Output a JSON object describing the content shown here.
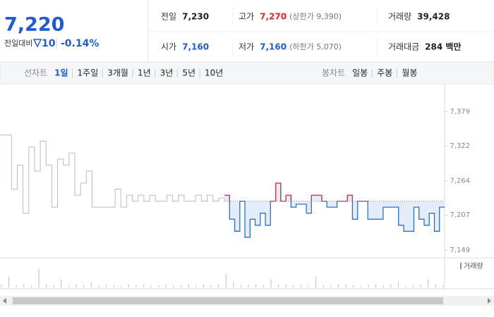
{
  "header": {
    "price": "7,220",
    "change_label": "전일대비",
    "change": "10",
    "change_pct": "-0.14%"
  },
  "quote": [
    {
      "label": "전일",
      "value": "7,230"
    },
    {
      "label": "고가",
      "value": "7,270",
      "note": "(상한가 9,390)"
    },
    {
      "label": "거래량",
      "value": "39,428"
    },
    {
      "label": "시가",
      "value": "7,160"
    },
    {
      "label": "저가",
      "value": "7,160",
      "note": "(하한가 5,070)"
    },
    {
      "label": "거래대금",
      "value": "284 백만"
    }
  ],
  "tabs": {
    "line_label": "선차트",
    "line": [
      "1일",
      "1주일",
      "3개월",
      "1년",
      "3년",
      "5년",
      "10년"
    ],
    "candle_label": "봉차트",
    "candle": [
      "일봉",
      "주봉",
      "월봉"
    ]
  },
  "chart_data": {
    "type": "line",
    "ylim": [
      7137,
      7424
    ],
    "yticks": [
      {
        "value": 7379,
        "label": "7,379"
      },
      {
        "value": 7322,
        "label": "7,322"
      },
      {
        "value": 7264,
        "label": "7,264"
      },
      {
        "value": 7207,
        "label": "7,207"
      },
      {
        "value": 7149,
        "label": "7,149"
      }
    ],
    "baseline": 7230,
    "series": [
      {
        "color": "#bbbbbb",
        "values": [
          7340,
          7340,
          7250,
          7290,
          7210,
          7320,
          7280,
          7330,
          7290,
          7220,
          7300,
          7290,
          7310,
          7240,
          7260,
          7280,
          7220,
          7220,
          7220,
          7220,
          7250,
          7220,
          7240,
          7230,
          7240,
          7230,
          7240,
          7230,
          7230,
          7240,
          7230,
          7240,
          7230,
          7230,
          7240,
          7230,
          7240,
          7230,
          7235,
          7230
        ]
      },
      {
        "color": "#2b6fd6",
        "up_color": "#e8333a",
        "values": [
          7240,
          7200,
          7180,
          7230,
          7170,
          7200,
          7190,
          7210,
          7190,
          7230,
          7260,
          7230,
          7240,
          7220,
          7225,
          7225,
          7210,
          7240,
          7240,
          7230,
          7220,
          7220,
          7230,
          7230,
          7240,
          7200,
          7230,
          7230,
          7200,
          7200,
          7200,
          7220,
          7220,
          7220,
          7190,
          7180,
          7180,
          7220,
          7200,
          7190,
          7210,
          7180,
          7220,
          7220
        ]
      }
    ],
    "volume": {
      "name": "거래량",
      "color": "#bbbbbb",
      "ylim": [
        0,
        100
      ],
      "values": [
        10,
        40,
        8,
        12,
        6,
        70,
        10,
        8,
        30,
        6,
        12,
        8,
        20,
        6,
        10,
        8,
        6,
        12,
        8,
        10,
        6,
        8,
        10,
        6,
        8,
        12,
        6,
        10,
        8,
        12,
        50,
        20,
        8,
        10,
        12,
        8,
        30,
        10,
        12,
        8,
        10,
        6,
        40,
        8,
        6,
        12,
        10,
        8,
        6,
        10,
        12,
        8,
        10,
        20,
        6,
        8,
        10,
        30,
        12,
        8
      ]
    }
  }
}
